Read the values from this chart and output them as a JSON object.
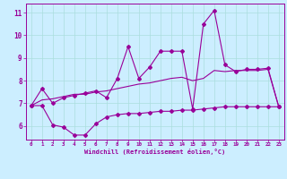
{
  "line1_x": [
    0,
    1,
    2,
    3,
    4,
    5,
    6,
    7,
    8,
    9,
    10,
    11,
    12,
    13,
    14,
    15,
    16,
    17,
    18,
    19,
    20,
    21,
    22,
    23
  ],
  "line1_y": [
    6.9,
    7.65,
    7.0,
    7.25,
    7.35,
    7.45,
    7.55,
    7.25,
    8.1,
    9.5,
    8.1,
    8.6,
    9.3,
    9.3,
    9.3,
    6.75,
    10.5,
    11.1,
    8.7,
    8.4,
    8.5,
    8.5,
    8.55,
    6.85
  ],
  "line2_x": [
    0,
    1,
    2,
    3,
    4,
    5,
    6,
    7,
    8,
    9,
    10,
    11,
    12,
    13,
    14,
    15,
    16,
    17,
    18,
    19,
    20,
    21,
    22,
    23
  ],
  "line2_y": [
    6.9,
    7.15,
    7.2,
    7.3,
    7.4,
    7.4,
    7.5,
    7.55,
    7.65,
    7.75,
    7.85,
    7.9,
    8.0,
    8.1,
    8.15,
    8.0,
    8.1,
    8.45,
    8.4,
    8.45,
    8.45,
    8.45,
    8.5,
    6.85
  ],
  "line3_x": [
    0,
    1,
    2,
    3,
    4,
    5,
    6,
    7,
    8,
    9,
    10,
    11,
    12,
    13,
    14,
    15,
    16,
    17,
    18,
    19,
    20,
    21,
    22,
    23
  ],
  "line3_y": [
    6.9,
    6.9,
    6.05,
    5.95,
    5.6,
    5.6,
    6.1,
    6.4,
    6.5,
    6.55,
    6.55,
    6.6,
    6.65,
    6.65,
    6.7,
    6.7,
    6.75,
    6.8,
    6.85,
    6.85,
    6.85,
    6.85,
    6.85,
    6.85
  ],
  "color": "#990099",
  "bg_color": "#cceeff",
  "grid_color": "#aadddd",
  "xlabel": "Windchill (Refroidissement éolien,°C)",
  "ylim": [
    5.4,
    11.4
  ],
  "xlim": [
    -0.5,
    23.5
  ],
  "yticks": [
    6,
    7,
    8,
    9,
    10,
    11
  ],
  "xticks": [
    0,
    1,
    2,
    3,
    4,
    5,
    6,
    7,
    8,
    9,
    10,
    11,
    12,
    13,
    14,
    15,
    16,
    17,
    18,
    19,
    20,
    21,
    22,
    23
  ],
  "marker": "D",
  "markersize": 2.0,
  "linewidth": 0.8
}
